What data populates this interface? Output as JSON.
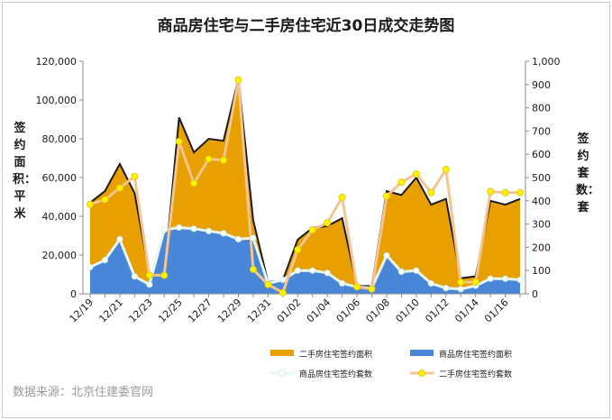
{
  "chart_data": {
    "type": "area",
    "title": "商品房住宅与二手房住宅近30日成交走势图",
    "ylabel_left": "签约面积：平米",
    "ylabel_right": "签约套数：套",
    "source": "数据来源：北京住建委官网",
    "x_tick_labels": [
      "12/19",
      "12/21",
      "12/23",
      "12/25",
      "12/27",
      "12/29",
      "12/31",
      "01/02",
      "01/04",
      "01/06",
      "01/08",
      "01/10",
      "01/12",
      "01/14",
      "01/16"
    ],
    "x": [
      "12/19",
      "12/20",
      "12/21",
      "12/22",
      "12/23",
      "12/24",
      "12/25",
      "12/26",
      "12/27",
      "12/28",
      "12/29",
      "12/30",
      "12/31",
      "01/01",
      "01/02",
      "01/03",
      "01/04",
      "01/05",
      "01/06",
      "01/07",
      "01/08",
      "01/09",
      "01/10",
      "01/11",
      "01/12",
      "01/13",
      "01/14",
      "01/15",
      "01/16",
      "01/17"
    ],
    "y_left": {
      "min": 0,
      "max": 120000,
      "ticks": [
        "0",
        "20,000",
        "40,000",
        "60,000",
        "80,000",
        "100,000",
        "120,000"
      ]
    },
    "y_right": {
      "min": 0,
      "max": 1000,
      "ticks": [
        "0",
        "100",
        "200",
        "300",
        "400",
        "500",
        "600",
        "700",
        "800",
        "900",
        "1,000"
      ]
    },
    "series": [
      {
        "name": "二手房住宅签约面积",
        "axis": "left",
        "kind": "area",
        "color": "#E8A000",
        "values": [
          47000,
          53000,
          67000,
          52000,
          10000,
          10000,
          91000,
          73000,
          80000,
          79000,
          111000,
          38000,
          6000,
          7000,
          28000,
          34000,
          35000,
          39000,
          4000,
          4000,
          53000,
          51000,
          60000,
          46000,
          49000,
          8000,
          9000,
          48000,
          46000,
          49000
        ]
      },
      {
        "name": "商品房住宅签约面积",
        "axis": "left",
        "kind": "area",
        "color": "#4A86D8",
        "values": [
          14000,
          18000,
          28000,
          9000,
          5000,
          33000,
          34000,
          33000,
          32000,
          31000,
          28000,
          27000,
          5000,
          7000,
          12000,
          12000,
          11000,
          5000,
          3000,
          3000,
          20000,
          12000,
          12000,
          5000,
          3000,
          2000,
          4000,
          8000,
          8000,
          7000
        ]
      },
      {
        "name": "商品房住宅签约套数",
        "axis": "right",
        "kind": "line",
        "color": "#E6F8F6",
        "values": [
          115,
          145,
          235,
          75,
          40,
          275,
          285,
          280,
          270,
          260,
          235,
          240,
          45,
          60,
          100,
          100,
          90,
          45,
          30,
          25,
          165,
          95,
          100,
          45,
          25,
          20,
          35,
          65,
          65,
          60
        ]
      },
      {
        "name": "二手房住宅签约套数",
        "axis": "right",
        "kind": "line",
        "color": "#F6C48E",
        "values": [
          385,
          405,
          455,
          505,
          80,
          80,
          655,
          475,
          580,
          575,
          920,
          105,
          40,
          5,
          190,
          275,
          305,
          415,
          30,
          20,
          420,
          480,
          515,
          435,
          535,
          50,
          50,
          440,
          435,
          435
        ]
      }
    ],
    "legend": {
      "position": "bottom",
      "items": [
        "二手房住宅签约面积",
        "商品房住宅签约面积",
        "商品房住宅签约套数",
        "二手房住宅签约套数"
      ]
    },
    "grid": false
  }
}
